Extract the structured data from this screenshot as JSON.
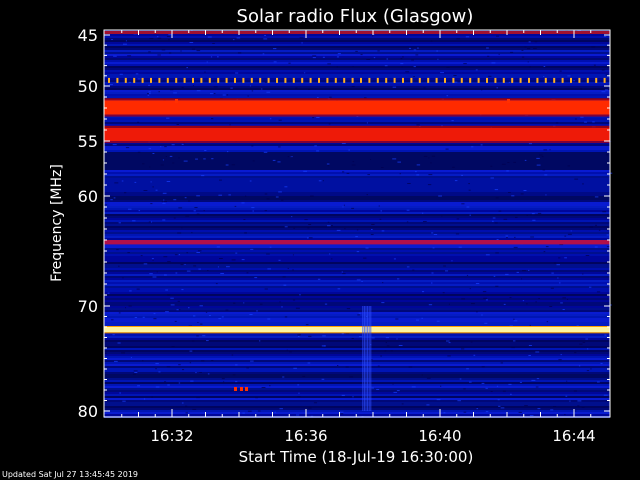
{
  "chart_data": {
    "type": "heatmap",
    "title": "Solar radio Flux (Glasgow)",
    "ylabel": "Frequency [MHz]",
    "xlabel": "Start Time (18-Jul-19 16:30:00)",
    "y_ticks": [
      45,
      50,
      55,
      60,
      70,
      80
    ],
    "x_ticks": [
      "16:32",
      "16:36",
      "16:40",
      "16:44"
    ],
    "x_tick_minutes": [
      2,
      6,
      10,
      14
    ],
    "x_range_minutes": [
      0,
      15
    ],
    "y_range_mhz": [
      45,
      80
    ],
    "features": [
      {
        "name": "band",
        "mhz_from": 51.3,
        "mhz_to": 52.6,
        "level": "high",
        "color": "#ff2a00"
      },
      {
        "name": "band",
        "mhz_from": 53.8,
        "mhz_to": 55.0,
        "level": "high",
        "color": "#ee1a08"
      },
      {
        "name": "band",
        "mhz_from": 64.0,
        "mhz_to": 64.4,
        "level": "medium",
        "color": "#b0104a"
      },
      {
        "name": "band",
        "mhz_from": 72.0,
        "mhz_to": 72.5,
        "level": "saturated",
        "color": "#fff4a0"
      },
      {
        "name": "comb",
        "mhz": 49.5,
        "color": "#ffb020"
      },
      {
        "name": "burst",
        "minute": 7.8,
        "mhz_from": 70.0,
        "mhz_to": 80.0
      }
    ]
  },
  "footer": {
    "updated": "Updated Sat Jul 27 13:45:45 2019"
  }
}
